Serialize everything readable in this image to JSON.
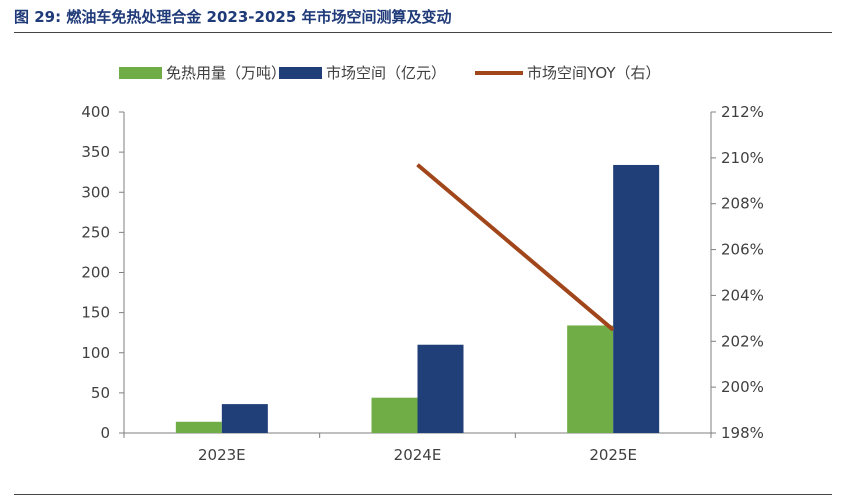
{
  "title": "图 29:  燃油车免热处理合金 2023-2025 年市场空间测算及变动",
  "colors": {
    "title": "#1f3a78",
    "volume": "#70ad47",
    "market": "#203e78",
    "yoy": "#a0461a",
    "axis": "#7f7f7f",
    "text": "#404040"
  },
  "chart_data": {
    "type": "bar",
    "title": "图 29:  燃油车免热处理合金 2023-2025 年市场空间测算及变动",
    "categories": [
      "2023E",
      "2024E",
      "2025E"
    ],
    "ylim": [
      0,
      400
    ],
    "yticks": [
      0,
      50,
      100,
      150,
      200,
      250,
      300,
      350,
      400
    ],
    "y2lim": [
      198,
      212
    ],
    "y2ticks": [
      "198%",
      "200%",
      "202%",
      "204%",
      "206%",
      "208%",
      "210%",
      "212%"
    ],
    "y2tick_values": [
      198,
      200,
      202,
      204,
      206,
      208,
      210,
      212
    ],
    "legend_position": "top",
    "grid": false,
    "series": [
      {
        "name": "免热用量（万吨）",
        "type": "bar",
        "axis": "left",
        "values": [
          14,
          44,
          134
        ]
      },
      {
        "name": "市场空间（亿元）",
        "type": "bar",
        "axis": "left",
        "values": [
          36,
          110,
          334
        ]
      },
      {
        "name": "市场空间YOY（右）",
        "type": "line",
        "axis": "right",
        "values": [
          null,
          209.7,
          202.5
        ]
      }
    ]
  }
}
